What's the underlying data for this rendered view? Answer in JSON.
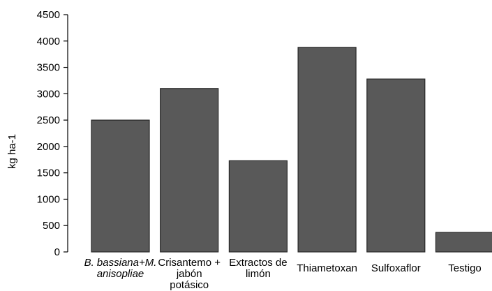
{
  "chart_data": {
    "type": "bar",
    "title": "",
    "xlabel": "",
    "ylabel": "kg ha-1",
    "ylim": [
      0,
      4500
    ],
    "yticks": [
      0,
      500,
      1000,
      1500,
      2000,
      2500,
      3000,
      3500,
      4000,
      4500
    ],
    "grid": false,
    "legend": "none",
    "bar_color": "#595959",
    "categories": [
      {
        "lines": [
          "B. bassiana+M.",
          "anisopliae"
        ],
        "italic": true
      },
      {
        "lines": [
          "Crisantemo +",
          "jabón",
          "potásico"
        ],
        "italic": false
      },
      {
        "lines": [
          "Extractos de",
          "limón"
        ],
        "italic": false
      },
      {
        "lines": [
          "Thiametoxan"
        ],
        "italic": false
      },
      {
        "lines": [
          "Sulfoxaflor"
        ],
        "italic": false
      },
      {
        "lines": [
          "Testigo"
        ],
        "italic": false
      }
    ],
    "values": [
      2500,
      3100,
      1730,
      3880,
      3280,
      370
    ]
  }
}
